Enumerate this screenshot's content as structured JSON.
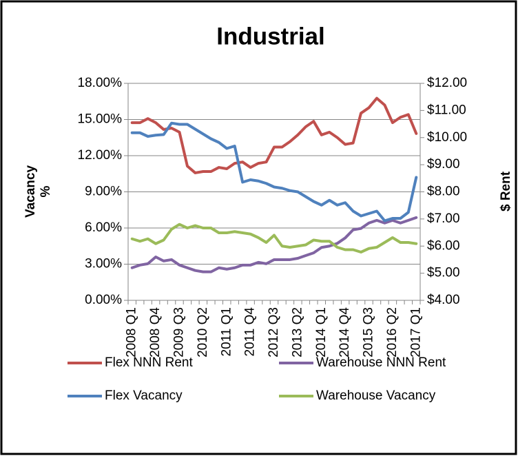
{
  "chart_data": {
    "type": "line",
    "title": "Industrial",
    "ylabel": "Vacancy %",
    "y2label": "$ Rent",
    "categories": [
      "2008 Q1",
      null,
      null,
      "2008 Q4",
      null,
      null,
      "2009 Q3",
      null,
      null,
      "2010 Q2",
      null,
      null,
      "2011 Q1",
      null,
      null,
      "2011 Q4",
      null,
      null,
      "2012 Q3",
      null,
      null,
      "2013 Q2",
      null,
      null,
      "2014 Q1",
      null,
      null,
      "2014 Q4",
      null,
      null,
      "2015 Q3",
      null,
      null,
      "2016 Q2",
      null,
      null,
      "2017 Q1"
    ],
    "series": [
      {
        "name": "Flex NNN Rent",
        "color": "#c0504d",
        "axis": "y2",
        "values": [
          10.55,
          10.55,
          10.7,
          10.55,
          10.3,
          10.35,
          10.2,
          8.95,
          8.7,
          8.75,
          8.75,
          8.9,
          8.85,
          9.05,
          9.1,
          8.9,
          9.05,
          9.1,
          9.65,
          9.65,
          9.85,
          10.1,
          10.4,
          10.6,
          10.1,
          10.2,
          10.0,
          9.75,
          9.8,
          10.9,
          11.1,
          11.45,
          11.2,
          10.55,
          10.75,
          10.85,
          10.15
        ]
      },
      {
        "name": "Warehouse NNN Rent",
        "color": "#8064a2",
        "axis": "y2",
        "values": [
          5.2,
          5.3,
          5.35,
          5.6,
          5.45,
          5.5,
          5.3,
          5.2,
          5.1,
          5.05,
          5.05,
          5.2,
          5.15,
          5.2,
          5.3,
          5.3,
          5.4,
          5.35,
          5.5,
          5.5,
          5.5,
          5.55,
          5.65,
          5.75,
          5.95,
          6.0,
          6.1,
          6.3,
          6.6,
          6.65,
          6.85,
          6.95,
          6.85,
          6.95,
          6.85,
          6.95,
          7.05
        ]
      },
      {
        "name": "Flex Vacancy",
        "color": "#4f81bd",
        "values": [
          13.9,
          13.9,
          13.6,
          13.7,
          13.75,
          14.7,
          14.6,
          14.6,
          14.2,
          13.8,
          13.4,
          13.1,
          12.6,
          12.8,
          9.8,
          10.0,
          9.9,
          9.7,
          9.4,
          9.3,
          9.1,
          9.0,
          8.6,
          8.2,
          7.9,
          8.3,
          7.9,
          8.1,
          7.4,
          7.0,
          7.2,
          7.4,
          6.6,
          6.8,
          6.8,
          7.3,
          10.2
        ]
      },
      {
        "name": "Warehouse Vacancy",
        "color": "#9bbb59",
        "values": [
          5.1,
          4.9,
          5.1,
          4.7,
          5.0,
          5.9,
          6.3,
          6.0,
          6.2,
          6.0,
          6.0,
          5.6,
          5.6,
          5.7,
          5.6,
          5.5,
          5.2,
          4.8,
          5.4,
          4.5,
          4.4,
          4.5,
          4.6,
          5.0,
          4.9,
          4.9,
          4.4,
          4.2,
          4.2,
          4.0,
          4.3,
          4.4,
          4.8,
          5.2,
          4.8,
          4.8,
          4.7
        ]
      }
    ],
    "ylim": [
      0,
      18
    ],
    "yticks": [
      {
        "value": 0,
        "label": "0.00%"
      },
      {
        "value": 3,
        "label": "3.00%"
      },
      {
        "value": 6,
        "label": "6.00%"
      },
      {
        "value": 9,
        "label": "9.00%"
      },
      {
        "value": 12,
        "label": "12.00%"
      },
      {
        "value": 15,
        "label": "15.00%"
      },
      {
        "value": 18,
        "label": "18.00%"
      }
    ],
    "y2lim": [
      4,
      12
    ],
    "y2ticks": [
      {
        "value": 4,
        "label": "$4.00"
      },
      {
        "value": 5,
        "label": "$5.00"
      },
      {
        "value": 6,
        "label": "$6.00"
      },
      {
        "value": 7,
        "label": "$7.00"
      },
      {
        "value": 8,
        "label": "$8.00"
      },
      {
        "value": 9,
        "label": "$9.00"
      },
      {
        "value": 10,
        "label": "$10.00"
      },
      {
        "value": 11,
        "label": "$11.00"
      },
      {
        "value": 12,
        "label": "$12.00"
      }
    ],
    "grid": true,
    "legend": "bottom"
  }
}
